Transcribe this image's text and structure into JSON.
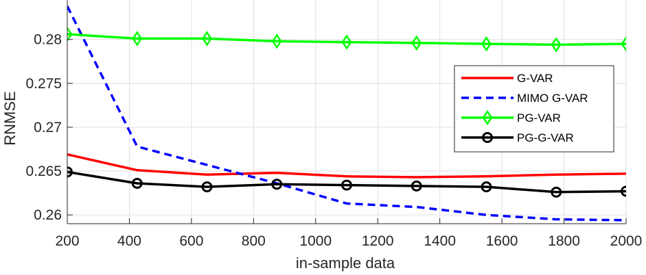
{
  "chart_data": {
    "type": "line",
    "xlabel": "in-sample data",
    "ylabel": "RNMSE",
    "xlim": [
      200,
      2000
    ],
    "ylim": [
      0.259,
      0.2845
    ],
    "x_ticks": [
      200,
      400,
      600,
      800,
      1000,
      1200,
      1400,
      1600,
      1800,
      2000
    ],
    "y_ticks": [
      0.26,
      0.265,
      0.27,
      0.275,
      0.28
    ],
    "y_tick_labels": [
      "0.26",
      "0.265",
      "0.27",
      "0.275",
      "0.28"
    ],
    "grid": true,
    "legend_position": "right",
    "x": [
      200,
      425,
      650,
      875,
      1100,
      1325,
      1550,
      1775,
      2000
    ],
    "series": [
      {
        "name": "G-VAR",
        "color": "#ff0000",
        "style": "solid",
        "marker": "none",
        "values": [
          0.2669,
          0.2651,
          0.2646,
          0.2648,
          0.2644,
          0.2643,
          0.2644,
          0.2646,
          0.2647
        ]
      },
      {
        "name": "MIMO G-VAR",
        "color": "#0000ff",
        "style": "dashed",
        "marker": "none",
        "values": [
          0.2838,
          0.2678,
          0.2657,
          0.2636,
          0.2613,
          0.2609,
          0.26,
          0.2595,
          0.2594
        ]
      },
      {
        "name": "PG-VAR",
        "color": "#00ff00",
        "style": "solid",
        "marker": "diamond",
        "values": [
          0.2806,
          0.2801,
          0.2801,
          0.2798,
          0.2797,
          0.2796,
          0.2795,
          0.2794,
          0.2795
        ]
      },
      {
        "name": "PG-G-VAR",
        "color": "#000000",
        "style": "solid",
        "marker": "circle",
        "values": [
          0.2649,
          0.2636,
          0.2632,
          0.2635,
          0.2634,
          0.2633,
          0.2632,
          0.2626,
          0.2627
        ]
      }
    ]
  }
}
